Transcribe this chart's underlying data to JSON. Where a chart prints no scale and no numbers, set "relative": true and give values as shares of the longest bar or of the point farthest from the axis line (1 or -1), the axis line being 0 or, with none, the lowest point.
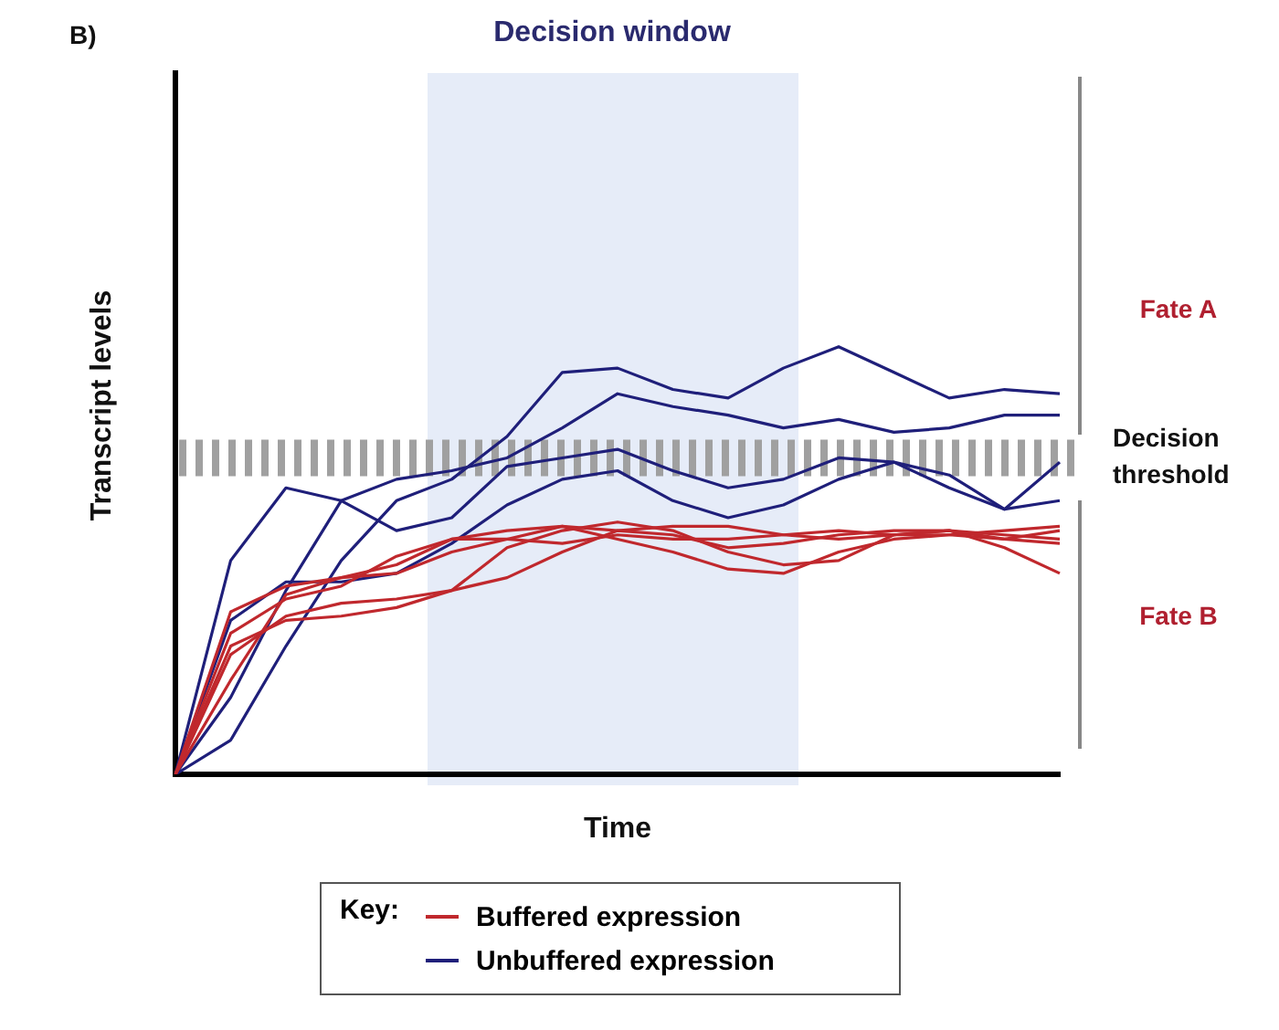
{
  "chart_data": {
    "type": "line",
    "relative": true,
    "xlabel": "Time",
    "ylabel": "Transcript levels",
    "legend_title": "Key:",
    "legend": "bottom",
    "marker": "none",
    "line_style": "solid",
    "categories": [
      null,
      null,
      null,
      null,
      null,
      null,
      null,
      null,
      null,
      null,
      null,
      null,
      null,
      null,
      null,
      null,
      null
    ],
    "series": [
      {
        "name": "Buffered expression",
        "color": "#c0282d",
        "values": [
          0,
          0.3,
          0.36,
          0.37,
          0.39,
          0.43,
          0.53,
          0.57,
          0.59,
          0.57,
          0.52,
          0.49,
          0.5,
          0.56,
          0.57,
          0.53,
          0.47
        ]
      },
      {
        "color": "#c0282d",
        "values": [
          0,
          0.38,
          0.44,
          0.46,
          0.49,
          0.55,
          0.57,
          0.58,
          0.57,
          0.58,
          0.58,
          0.56,
          0.55,
          0.56,
          0.57,
          0.56,
          0.55
        ]
      },
      {
        "color": "#c0282d",
        "values": [
          0,
          0.28,
          0.37,
          0.4,
          0.41,
          0.43,
          0.46,
          0.52,
          0.57,
          0.56,
          0.53,
          0.54,
          0.56,
          0.57,
          0.57,
          0.55,
          0.57
        ]
      },
      {
        "color": "#c0282d",
        "values": [
          0,
          0.22,
          0.42,
          0.46,
          0.47,
          0.52,
          0.55,
          0.58,
          0.55,
          0.52,
          0.48,
          0.47,
          0.52,
          0.55,
          0.56,
          0.57,
          0.58
        ]
      },
      {
        "color": "#c0282d",
        "values": [
          0,
          0.33,
          0.41,
          0.44,
          0.51,
          0.55,
          0.55,
          0.54,
          0.56,
          0.55,
          0.55,
          0.56,
          0.57,
          0.56,
          0.56,
          0.55,
          0.54
        ]
      },
      {
        "name": "Unbuffered expression",
        "color": "#1f1f7a",
        "values": [
          0,
          0.08,
          0.3,
          0.5,
          0.64,
          0.69,
          0.79,
          0.94,
          0.95,
          0.9,
          0.88,
          0.95,
          1,
          0.94,
          0.88,
          0.9,
          0.89
        ]
      },
      {
        "color": "#1f1f7a",
        "values": [
          0,
          0.18,
          0.43,
          0.64,
          0.69,
          0.71,
          0.74,
          0.81,
          0.89,
          0.86,
          0.84,
          0.81,
          0.83,
          0.8,
          0.81,
          0.84,
          0.84
        ]
      },
      {
        "color": "#1f1f7a",
        "values": [
          0,
          0.5,
          0.67,
          0.64,
          0.57,
          0.6,
          0.72,
          0.74,
          0.76,
          0.71,
          0.67,
          0.69,
          0.74,
          0.73,
          0.67,
          0.62,
          0.64
        ]
      },
      {
        "color": "#1f1f7a",
        "values": [
          0,
          0.36,
          0.45,
          0.45,
          0.47,
          0.54,
          0.63,
          0.69,
          0.71,
          0.64,
          0.6,
          0.63,
          0.69,
          0.73,
          0.7,
          0.62,
          0.73
        ]
      }
    ],
    "ref_lines": [
      {
        "axis": "y",
        "value": 0.74,
        "label": "Decision threshold",
        "color": "#a0a0a0",
        "line_style": "dashed"
      }
    ],
    "annotations": [
      "B)",
      "Decision window",
      "Fate A",
      "Fate B"
    ]
  }
}
